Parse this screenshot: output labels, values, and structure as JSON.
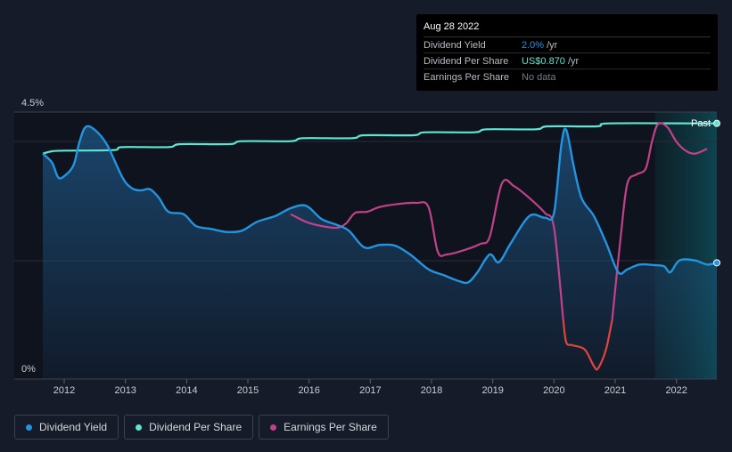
{
  "tooltip": {
    "date": "Aug 28 2022",
    "rows": [
      {
        "label": "Dividend Yield",
        "value": "2.0%",
        "unit": "/yr"
      },
      {
        "label": "Dividend Per Share",
        "value": "US$0.870",
        "unit": "/yr"
      },
      {
        "label": "Earnings Per Share",
        "value": "No data",
        "unit": ""
      }
    ]
  },
  "legend": [
    {
      "label": "Dividend Yield",
      "color": "#2394df"
    },
    {
      "label": "Dividend Per Share",
      "color": "#5fe6d0"
    },
    {
      "label": "Earnings Per Share",
      "color": "#c2428a"
    }
  ],
  "past_label": "Past",
  "colors": {
    "yield": "#2394df",
    "dps": "#5fe6d0",
    "eps": "#c2428a",
    "eps_negative": "#e0443e",
    "background": "#151b28"
  },
  "chart_data": {
    "type": "line",
    "title": "",
    "xlabel": "",
    "ylabel": "",
    "ylim": [
      0,
      4.5
    ],
    "y_ticks": [
      "4.5%",
      "0%"
    ],
    "xlim": [
      2011.65,
      2022.66
    ],
    "x_ticks": [
      "2012",
      "2013",
      "2014",
      "2015",
      "2016",
      "2017",
      "2018",
      "2019",
      "2020",
      "2021",
      "2022"
    ],
    "past_region_start": 2021.65,
    "series": [
      {
        "name": "Dividend Yield",
        "unit": "%",
        "points": [
          [
            2011.65,
            3.8
          ],
          [
            2011.8,
            3.65
          ],
          [
            2011.9,
            3.4
          ],
          [
            2012.0,
            3.42
          ],
          [
            2012.15,
            3.6
          ],
          [
            2012.25,
            4.0
          ],
          [
            2012.35,
            4.25
          ],
          [
            2012.5,
            4.2
          ],
          [
            2012.7,
            3.95
          ],
          [
            2012.95,
            3.4
          ],
          [
            2013.1,
            3.22
          ],
          [
            2013.25,
            3.18
          ],
          [
            2013.4,
            3.2
          ],
          [
            2013.55,
            3.05
          ],
          [
            2013.7,
            2.82
          ],
          [
            2013.95,
            2.78
          ],
          [
            2014.15,
            2.58
          ],
          [
            2014.4,
            2.53
          ],
          [
            2014.65,
            2.48
          ],
          [
            2014.9,
            2.5
          ],
          [
            2015.15,
            2.65
          ],
          [
            2015.45,
            2.75
          ],
          [
            2015.7,
            2.88
          ],
          [
            2015.95,
            2.92
          ],
          [
            2016.2,
            2.7
          ],
          [
            2016.45,
            2.6
          ],
          [
            2016.65,
            2.5
          ],
          [
            2016.9,
            2.22
          ],
          [
            2017.15,
            2.26
          ],
          [
            2017.4,
            2.25
          ],
          [
            2017.65,
            2.1
          ],
          [
            2017.95,
            1.85
          ],
          [
            2018.2,
            1.75
          ],
          [
            2018.45,
            1.65
          ],
          [
            2018.6,
            1.63
          ],
          [
            2018.75,
            1.8
          ],
          [
            2018.95,
            2.1
          ],
          [
            2019.1,
            1.97
          ],
          [
            2019.3,
            2.3
          ],
          [
            2019.6,
            2.75
          ],
          [
            2019.85,
            2.72
          ],
          [
            2020.0,
            2.8
          ],
          [
            2020.12,
            3.95
          ],
          [
            2020.2,
            4.2
          ],
          [
            2020.32,
            3.6
          ],
          [
            2020.45,
            3.05
          ],
          [
            2020.65,
            2.75
          ],
          [
            2020.85,
            2.3
          ],
          [
            2021.05,
            1.8
          ],
          [
            2021.2,
            1.85
          ],
          [
            2021.4,
            1.93
          ],
          [
            2021.65,
            1.92
          ],
          [
            2021.8,
            1.9
          ],
          [
            2021.9,
            1.8
          ],
          [
            2022.05,
            2.0
          ],
          [
            2022.3,
            2.0
          ],
          [
            2022.5,
            1.93
          ],
          [
            2022.66,
            1.96
          ]
        ]
      },
      {
        "name": "Dividend Per Share",
        "points": [
          [
            2011.65,
            3.8
          ],
          [
            2011.8,
            3.84
          ],
          [
            2012.0,
            3.85
          ],
          [
            2012.8,
            3.86
          ],
          [
            2012.95,
            3.91
          ],
          [
            2013.7,
            3.91
          ],
          [
            2013.9,
            3.96
          ],
          [
            2014.7,
            3.96
          ],
          [
            2014.9,
            4.01
          ],
          [
            2015.7,
            4.01
          ],
          [
            2015.9,
            4.06
          ],
          [
            2016.7,
            4.06
          ],
          [
            2016.9,
            4.11
          ],
          [
            2017.7,
            4.11
          ],
          [
            2017.9,
            4.16
          ],
          [
            2018.7,
            4.16
          ],
          [
            2018.9,
            4.21
          ],
          [
            2019.7,
            4.21
          ],
          [
            2019.9,
            4.26
          ],
          [
            2020.7,
            4.26
          ],
          [
            2020.9,
            4.31
          ],
          [
            2022.3,
            4.31
          ],
          [
            2022.66,
            4.31
          ]
        ]
      },
      {
        "name": "Earnings Per Share",
        "segments": [
          {
            "negative": false,
            "points": [
              [
                2015.7,
                2.78
              ],
              [
                2015.95,
                2.65
              ],
              [
                2016.2,
                2.58
              ],
              [
                2016.45,
                2.55
              ],
              [
                2016.6,
                2.62
              ],
              [
                2016.75,
                2.8
              ],
              [
                2016.95,
                2.82
              ],
              [
                2017.15,
                2.9
              ],
              [
                2017.45,
                2.95
              ],
              [
                2017.75,
                2.97
              ],
              [
                2017.95,
                2.9
              ],
              [
                2018.1,
                2.15
              ],
              [
                2018.25,
                2.1
              ],
              [
                2018.55,
                2.18
              ],
              [
                2018.8,
                2.28
              ],
              [
                2018.95,
                2.4
              ],
              [
                2019.15,
                3.3
              ],
              [
                2019.35,
                3.25
              ],
              [
                2019.6,
                3.05
              ],
              [
                2019.85,
                2.8
              ],
              [
                2020.0,
                2.55
              ],
              [
                2020.15,
                1.0
              ]
            ]
          },
          {
            "negative": true,
            "points": [
              [
                2020.15,
                1.0
              ],
              [
                2020.2,
                0.62
              ],
              [
                2020.3,
                0.57
              ],
              [
                2020.5,
                0.5
              ],
              [
                2020.65,
                0.22
              ],
              [
                2020.72,
                0.18
              ],
              [
                2020.85,
                0.5
              ],
              [
                2020.95,
                1.0
              ]
            ]
          },
          {
            "negative": false,
            "points": [
              [
                2020.95,
                1.0
              ],
              [
                2021.1,
                2.5
              ],
              [
                2021.2,
                3.3
              ],
              [
                2021.35,
                3.45
              ],
              [
                2021.5,
                3.55
              ],
              [
                2021.6,
                4.0
              ],
              [
                2021.7,
                4.3
              ],
              [
                2021.85,
                4.25
              ],
              [
                2022.0,
                4.0
              ],
              [
                2022.15,
                3.85
              ],
              [
                2022.3,
                3.8
              ],
              [
                2022.5,
                3.88
              ]
            ]
          }
        ]
      }
    ]
  }
}
